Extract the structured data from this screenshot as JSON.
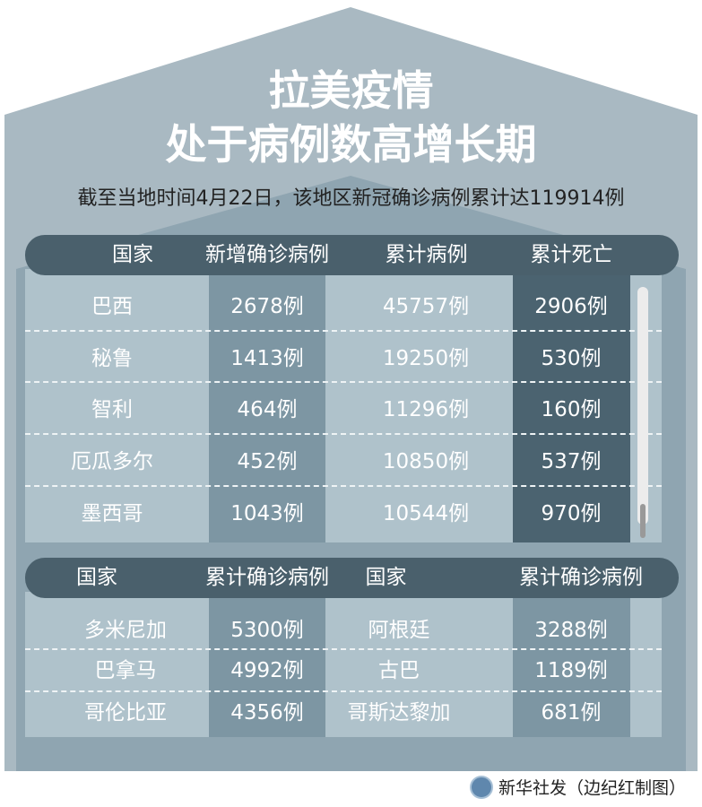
{
  "title_line1": "拉美疫情",
  "title_line2": "处于病例数高增长期",
  "subtitle": "截至当地时间4月22日，该地区新冠确诊病例累计达119914例",
  "table1": {
    "headers": [
      "国家",
      "新增确诊病例",
      "累计病例",
      "累计死亡"
    ],
    "rows": [
      [
        "巴西",
        "2678例",
        "45757例",
        "2906例"
      ],
      [
        "秘鲁",
        "1413例",
        "19250例",
        "530例"
      ],
      [
        "智利",
        "464例",
        "11296例",
        "160例"
      ],
      [
        "厄瓜多尔",
        "452例",
        "10850例",
        "537例"
      ],
      [
        "墨西哥",
        "1043例",
        "10544例",
        "970例"
      ]
    ]
  },
  "table2": {
    "headers": [
      "国家",
      "累计确诊病例",
      "国家",
      "累计确诊病例"
    ],
    "rows": [
      [
        "多米尼加",
        "5300例",
        "阿根廷",
        "3288例"
      ],
      [
        "巴拿马",
        "4992例",
        "古巴",
        "1189例"
      ],
      [
        "哥伦比亚",
        "4356例",
        "哥斯达黎加",
        "681例"
      ]
    ]
  },
  "footer": "新华社发（边纪红制图）",
  "colors": {
    "house_outer": "#a9b9c2",
    "house_inner": "#8fa5b1",
    "header_bar": "#4a606c",
    "dark_column": "#4b6370",
    "medium_column": "#7d96a3",
    "panel": "#afc2cb"
  }
}
